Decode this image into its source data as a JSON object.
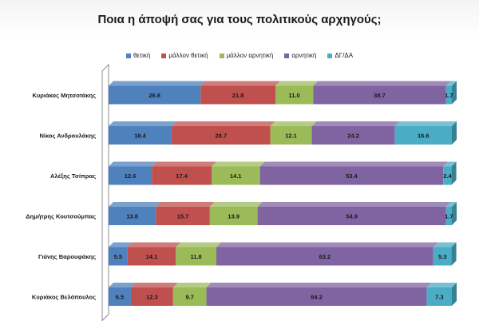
{
  "chart_data": {
    "type": "bar",
    "orientation": "horizontal-stacked-100",
    "title": "Ποια η άποψή σας για τους πολιτικούς αρχηγούς;",
    "categories": [
      "Κυριάκος Μητσοτάκης",
      "Νίκος Ανδρουλάκης",
      "Αλέξης Τσίπρας",
      "Δημήτρης Κουτσούμπας",
      "Γιάνης Βαρουφάκης",
      "Κυριάκος Βελόπουλος"
    ],
    "series": [
      {
        "name": "θετική",
        "color": "#4f81bd",
        "values": [
          26.8,
          18.4,
          12.6,
          13.8,
          5.5,
          6.5
        ]
      },
      {
        "name": "μάλλον θετική",
        "color": "#c0504d",
        "values": [
          21.8,
          28.7,
          17.4,
          15.7,
          14.1,
          12.3
        ]
      },
      {
        "name": "μάλλον αρνητική",
        "color": "#9bbb59",
        "values": [
          11.0,
          12.1,
          14.1,
          13.9,
          11.8,
          9.7
        ]
      },
      {
        "name": "αρνητική",
        "color": "#8064a2",
        "values": [
          38.7,
          24.2,
          53.4,
          54.9,
          63.2,
          64.2
        ]
      },
      {
        "name": "ΔΓ/ΔΑ",
        "color": "#4bacc6",
        "values": [
          1.7,
          16.6,
          2.4,
          1.7,
          5.3,
          7.3
        ]
      }
    ],
    "xlim": [
      0,
      100
    ],
    "legend_position": "top",
    "grid": false
  }
}
